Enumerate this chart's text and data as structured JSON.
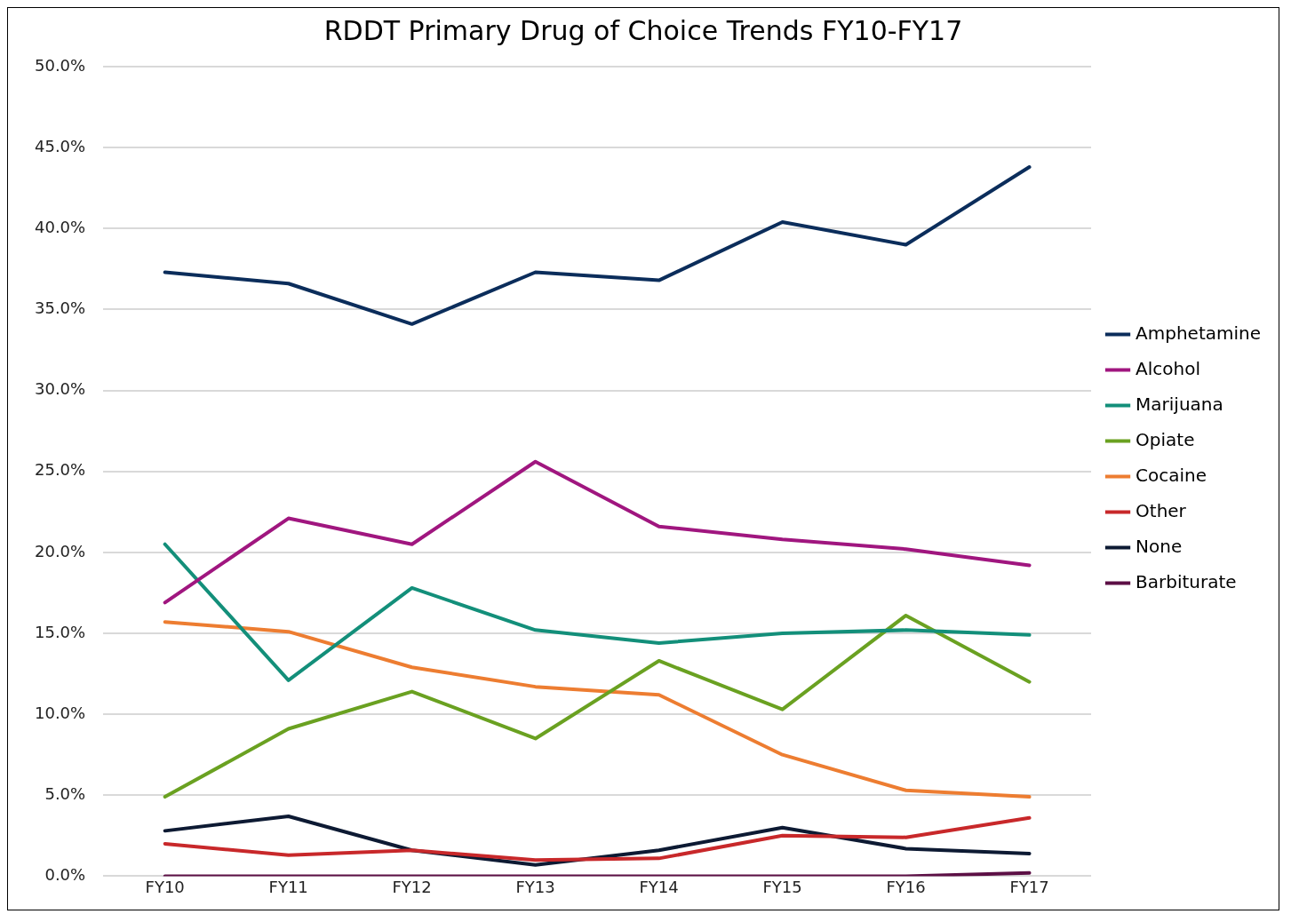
{
  "chart_data": {
    "type": "line",
    "title": "RDDT Primary Drug of Choice Trends FY10-FY17",
    "categories": [
      "FY10",
      "FY11",
      "FY12",
      "FY13",
      "FY14",
      "FY15",
      "FY16",
      "FY17"
    ],
    "series": [
      {
        "name": "Amphetamine",
        "color": "#0b2d5b",
        "values": [
          37.3,
          36.6,
          34.1,
          37.3,
          36.8,
          40.4,
          39.0,
          43.8
        ]
      },
      {
        "name": "Alcohol",
        "color": "#a0167f",
        "values": [
          16.9,
          22.1,
          20.5,
          25.6,
          21.6,
          20.8,
          20.2,
          19.2
        ]
      },
      {
        "name": "Marijuana",
        "color": "#138f7a",
        "values": [
          20.5,
          12.1,
          17.8,
          15.2,
          14.4,
          15.0,
          15.2,
          14.9
        ]
      },
      {
        "name": "Opiate",
        "color": "#6aa121",
        "values": [
          4.9,
          9.1,
          11.4,
          8.5,
          13.3,
          10.3,
          16.1,
          12.0
        ]
      },
      {
        "name": "Cocaine",
        "color": "#ed7d31",
        "values": [
          15.7,
          15.1,
          12.9,
          11.7,
          11.2,
          7.5,
          5.3,
          4.9
        ]
      },
      {
        "name": "Other",
        "color": "#c8282a",
        "values": [
          2.0,
          1.3,
          1.6,
          1.0,
          1.1,
          2.5,
          2.4,
          3.6
        ]
      },
      {
        "name": "None",
        "color": "#0d1a33",
        "values": [
          2.8,
          3.7,
          1.6,
          0.7,
          1.6,
          3.0,
          1.7,
          1.4
        ]
      },
      {
        "name": "Barbiturate",
        "color": "#5c0f45",
        "values": [
          0,
          0,
          0,
          0,
          0,
          0,
          0,
          0.2
        ]
      }
    ],
    "ylim": [
      0,
      50
    ],
    "yticks": [
      {
        "value": 0,
        "label": "0.0%"
      },
      {
        "value": 5,
        "label": "5.0%"
      },
      {
        "value": 10,
        "label": "10.0%"
      },
      {
        "value": 15,
        "label": "15.0%"
      },
      {
        "value": 20,
        "label": "20.0%"
      },
      {
        "value": 25,
        "label": "25.0%"
      },
      {
        "value": 30,
        "label": "30.0%"
      },
      {
        "value": 35,
        "label": "35.0%"
      },
      {
        "value": 40,
        "label": "40.0%"
      },
      {
        "value": 45,
        "label": "45.0%"
      },
      {
        "value": 50,
        "label": "50.0%"
      }
    ],
    "grid": "y",
    "legend": "right",
    "marker": "none",
    "line_style": "solid"
  }
}
